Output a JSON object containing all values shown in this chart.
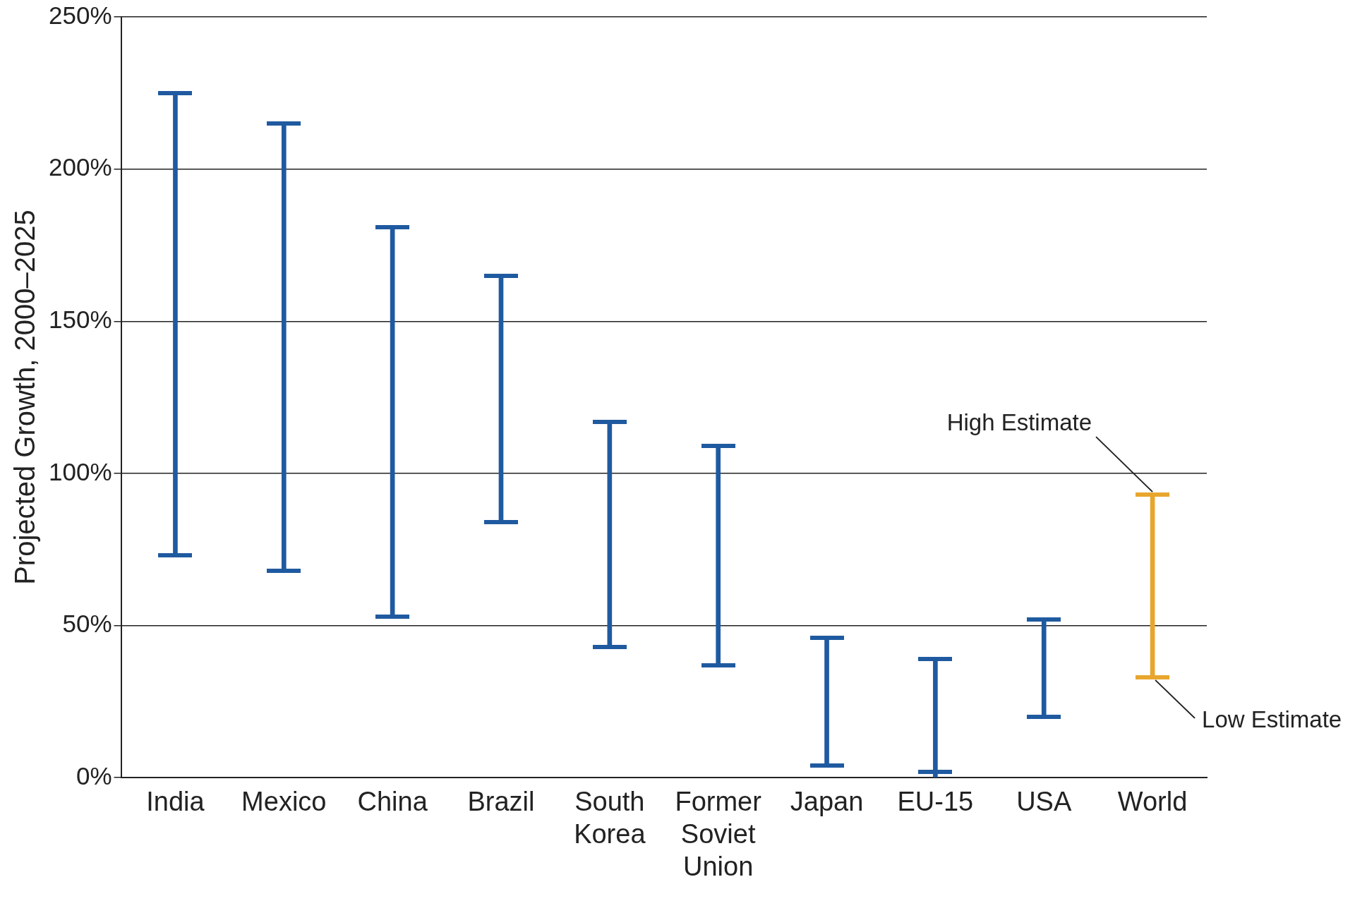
{
  "chart_data": {
    "type": "bar",
    "ylabel": "Projected Growth, 2000–2025",
    "categories": [
      "India",
      "Mexico",
      "China",
      "Brazil",
      "South Korea",
      "Former Soviet Union",
      "Japan",
      "EU-15",
      "USA",
      "World"
    ],
    "base": [
      73,
      68,
      53,
      84,
      43,
      37,
      4,
      0,
      20,
      33
    ],
    "values": [
      152,
      147,
      128,
      81,
      74,
      72,
      42,
      39,
      32,
      60
    ],
    "colors": [
      "#1f5aa0",
      "#1f5aa0",
      "#1f5aa0",
      "#1f5aa0",
      "#1f5aa0",
      "#1f5aa0",
      "#1f5aa0",
      "#1f5aa0",
      "#1f5aa0",
      "#e8a62e"
    ],
    "ylim": [
      0,
      250
    ],
    "yticks": [
      {
        "value": 0,
        "label": "0%"
      },
      {
        "value": 50,
        "label": "50%"
      },
      {
        "value": 100,
        "label": "100%"
      },
      {
        "value": 150,
        "label": "150%"
      },
      {
        "value": 200,
        "label": "200%"
      },
      {
        "value": 250,
        "label": "250%"
      }
    ],
    "grid": "y",
    "legend": false,
    "annotations": [
      {
        "text": "High Estimate",
        "x": "World",
        "y": 93
      },
      {
        "text": "Low Estimate",
        "x": "World",
        "y": 33
      }
    ]
  }
}
